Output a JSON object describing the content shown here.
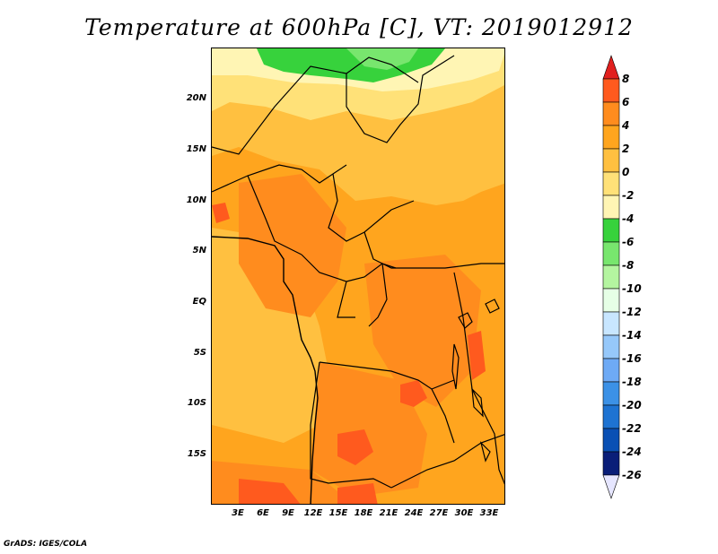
{
  "title": "Temperature at 600hPa [C], VT: 2019012912",
  "credit": "GrADS: IGES/COLA",
  "lat_labels": [
    "20N",
    "15N",
    "10N",
    "5N",
    "EQ",
    "5S",
    "10S",
    "15S"
  ],
  "lon_labels": [
    "3E",
    "6E",
    "9E",
    "12E",
    "15E",
    "18E",
    "21E",
    "24E",
    "27E",
    "30E",
    "33E"
  ],
  "colorbar": {
    "labels": [
      "8",
      "6",
      "4",
      "2",
      "0",
      "-2",
      "-4",
      "-6",
      "-8",
      "-10",
      "-12",
      "-14",
      "-16",
      "-18",
      "-20",
      "-22",
      "-24",
      "-26"
    ],
    "colors": [
      "#f0000a",
      "#ff5a1e",
      "#ff8c1e",
      "#ffa51e",
      "#ffc040",
      "#ffe178",
      "#fff5b4",
      "#37d23c",
      "#78e66e",
      "#b4f5a0",
      "#e6ffe6",
      "#c8e6ff",
      "#96c8fa",
      "#6eaaf5",
      "#3c91e6",
      "#1e73d2",
      "#0a50b4",
      "#0a1e78",
      "#000050"
    ],
    "arrow_top": "#e1201e",
    "arrow_bottom": "#e6e6ff"
  },
  "map_colors": {
    "band_4_6": "#ff8c1e",
    "band_2_4": "#ffa51e",
    "band_0_2": "#ffc040",
    "band_m2_0": "#ffe178",
    "band_m4_m2": "#fff5b4",
    "band_m6_m4": "#37d23c",
    "band_m8_m6": "#78e66e",
    "band_6_8": "#ff5a1e"
  }
}
